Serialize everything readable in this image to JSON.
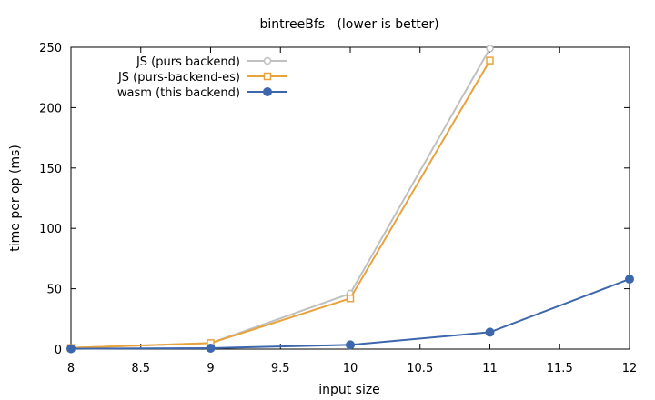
{
  "chart_data": {
    "type": "line",
    "title": "bintreeBfs   (lower is better)",
    "xlabel": "input size",
    "ylabel": "time per op (ms)",
    "xlim": [
      8,
      12
    ],
    "ylim": [
      0,
      250
    ],
    "xticks": [
      8,
      8.5,
      9,
      9.5,
      10,
      10.5,
      11,
      11.5,
      12
    ],
    "xtick_labels": [
      "8",
      "8.5",
      "9",
      "9.5",
      "10",
      "10.5",
      "11",
      "11.5",
      "12"
    ],
    "yticks": [
      0,
      50,
      100,
      150,
      200,
      250
    ],
    "ytick_labels": [
      "0",
      "50",
      "100",
      "150",
      "200",
      "250"
    ],
    "grid": false,
    "legend_position": "top-left",
    "series": [
      {
        "name": "JS (purs backend)",
        "color": "#c0c0c0",
        "marker": "open-circle",
        "x": [
          8,
          9,
          10,
          11
        ],
        "y": [
          1,
          5,
          46,
          249
        ]
      },
      {
        "name": "JS (purs-backend-es)",
        "color": "#e8a33d",
        "marker": "open-square",
        "x": [
          8,
          9,
          10,
          11
        ],
        "y": [
          1,
          5,
          42,
          239
        ]
      },
      {
        "name": "wasm (this backend)",
        "color": "#3d67ad",
        "marker": "filled-circle",
        "x": [
          8,
          9,
          10,
          11,
          12
        ],
        "y": [
          0.3,
          0.8,
          3.5,
          14,
          58
        ]
      }
    ]
  }
}
